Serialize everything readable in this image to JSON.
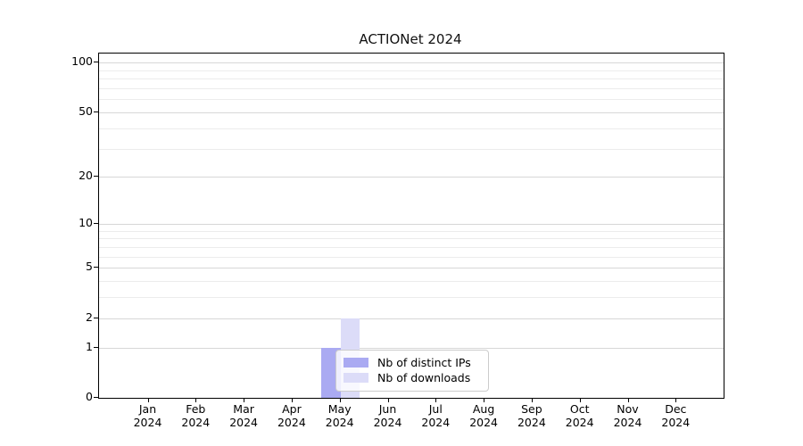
{
  "chart_data": {
    "type": "bar",
    "title": "ACTIONet 2024",
    "categories": [
      "Jan",
      "Feb",
      "Mar",
      "Apr",
      "May",
      "Jun",
      "Jul",
      "Aug",
      "Sep",
      "Oct",
      "Nov",
      "Dec"
    ],
    "category_year": "2024",
    "series": [
      {
        "name": "Nb of distinct IPs",
        "color": "#aaaaf2",
        "values": [
          0,
          0,
          0,
          0,
          1,
          0,
          0,
          0,
          0,
          0,
          0,
          0
        ]
      },
      {
        "name": "Nb of downloads",
        "color": "#dcdcf8",
        "values": [
          0,
          0,
          0,
          0,
          2,
          0,
          0,
          0,
          0,
          0,
          0,
          0
        ]
      }
    ],
    "xlabel": "",
    "ylabel": "",
    "yscale": "log1p",
    "ylim": [
      0,
      113
    ],
    "yticks_major": [
      0,
      1,
      2,
      5,
      10,
      20,
      50,
      100
    ],
    "yticks_minor": [
      3,
      4,
      6,
      7,
      8,
      9,
      30,
      40,
      60,
      70,
      80,
      90
    ],
    "grid": "horizontal",
    "legend_position": "inside-lower-center",
    "colors": {
      "grid_major": "#d7d7d7",
      "grid_minor": "#ececec",
      "axis": "#000000",
      "text": "#000000",
      "background": "#ffffff"
    }
  }
}
